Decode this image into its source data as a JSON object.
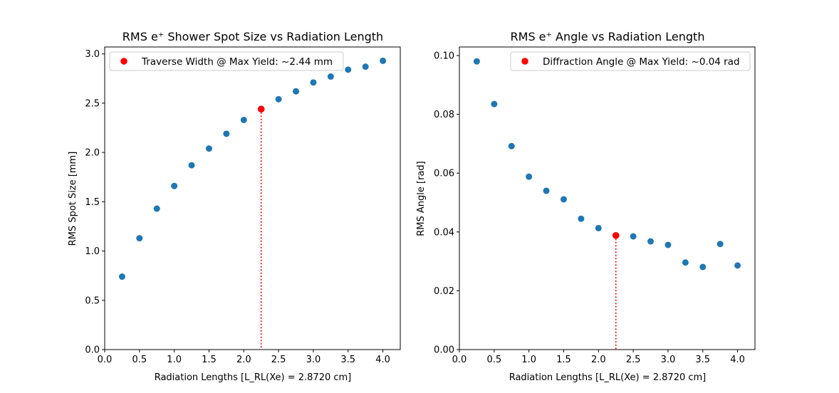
{
  "chart_data": [
    {
      "type": "scatter",
      "title": "RMS e⁺ Shower Spot Size vs Radiation Length",
      "xlabel": "Radiation Lengths [L_RL(Xe) = 2.8720 cm]",
      "ylabel": "RMS Spot Size [mm]",
      "xlim": [
        0.0,
        4.25
      ],
      "ylim": [
        0.0,
        3.07
      ],
      "xticks": [
        "0.0",
        "0.5",
        "1.0",
        "1.5",
        "2.0",
        "2.5",
        "3.0",
        "3.5",
        "4.0"
      ],
      "yticks": [
        "0.0",
        "0.5",
        "1.0",
        "1.5",
        "2.0",
        "2.5",
        "3.0"
      ],
      "series": [
        {
          "color": "#1f77b4",
          "x": [
            0.25,
            0.5,
            0.75,
            1.0,
            1.25,
            1.5,
            1.75,
            2.0,
            2.5,
            2.75,
            3.0,
            3.25,
            3.5,
            3.75,
            4.0
          ],
          "y": [
            0.74,
            1.13,
            1.43,
            1.66,
            1.87,
            2.04,
            2.19,
            2.33,
            2.54,
            2.62,
            2.71,
            2.77,
            2.84,
            2.87,
            2.93
          ]
        }
      ],
      "highlight": {
        "x": 2.25,
        "y": 2.44,
        "color": "#ff0000",
        "label": "Traverse Width @ Max Yield: ~2.44 mm"
      },
      "legend_position": "upper-left",
      "grid": false
    },
    {
      "type": "scatter",
      "title": "RMS e⁺ Angle vs Radiation Length",
      "xlabel": "Radiation Lengths [L_RL(Xe) = 2.8720 cm]",
      "ylabel": "RMS Angle [rad]",
      "xlim": [
        0.0,
        4.25
      ],
      "ylim": [
        0.0,
        0.1029
      ],
      "xticks": [
        "0.0",
        "0.5",
        "1.0",
        "1.5",
        "2.0",
        "2.5",
        "3.0",
        "3.5",
        "4.0"
      ],
      "yticks": [
        "0.00",
        "0.02",
        "0.04",
        "0.06",
        "0.08",
        "0.10"
      ],
      "series": [
        {
          "color": "#1f77b4",
          "x": [
            0.25,
            0.5,
            0.75,
            1.0,
            1.25,
            1.5,
            1.75,
            2.0,
            2.5,
            2.75,
            3.0,
            3.25,
            3.5,
            3.75,
            4.0
          ],
          "y": [
            0.098,
            0.0835,
            0.0692,
            0.0588,
            0.054,
            0.0511,
            0.0445,
            0.0413,
            0.0385,
            0.0368,
            0.0356,
            0.0296,
            0.0281,
            0.0359,
            0.0286
          ]
        }
      ],
      "highlight": {
        "x": 2.25,
        "y": 0.0388,
        "color": "#ff0000",
        "label": "Diffraction Angle @ Max Yield: ~0.04 rad"
      },
      "legend_position": "upper-right",
      "grid": false
    }
  ]
}
